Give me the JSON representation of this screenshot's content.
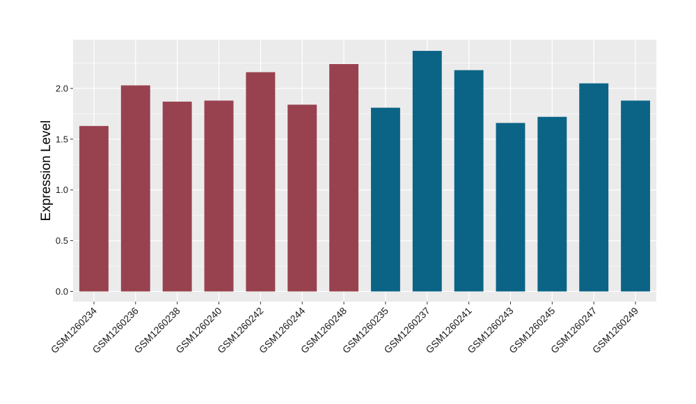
{
  "chart_data": {
    "type": "bar",
    "title": "",
    "xlabel": "",
    "ylabel": "Expression Level",
    "ylim": [
      -0.1,
      2.48
    ],
    "yticks": [
      0.0,
      0.5,
      1.0,
      1.5,
      2.0
    ],
    "ytick_labels": [
      "0.0",
      "0.5",
      "1.0",
      "1.5",
      "2.0"
    ],
    "grid": true,
    "legend": "none",
    "colors": {
      "panel": "#ebebeb",
      "grid": "#ffffff",
      "group_a": "#99424f",
      "group_b": "#0b6486"
    },
    "categories": [
      "GSM1260234",
      "GSM1260236",
      "GSM1260238",
      "GSM1260240",
      "GSM1260242",
      "GSM1260244",
      "GSM1260248",
      "GSM1260235",
      "GSM1260237",
      "GSM1260241",
      "GSM1260243",
      "GSM1260245",
      "GSM1260247",
      "GSM1260249"
    ],
    "values": [
      1.63,
      2.03,
      1.87,
      1.88,
      2.16,
      1.84,
      2.24,
      1.81,
      2.37,
      2.18,
      1.66,
      1.72,
      2.05,
      1.88
    ],
    "bar_groups": [
      "a",
      "a",
      "a",
      "a",
      "a",
      "a",
      "a",
      "b",
      "b",
      "b",
      "b",
      "b",
      "b",
      "b"
    ]
  }
}
